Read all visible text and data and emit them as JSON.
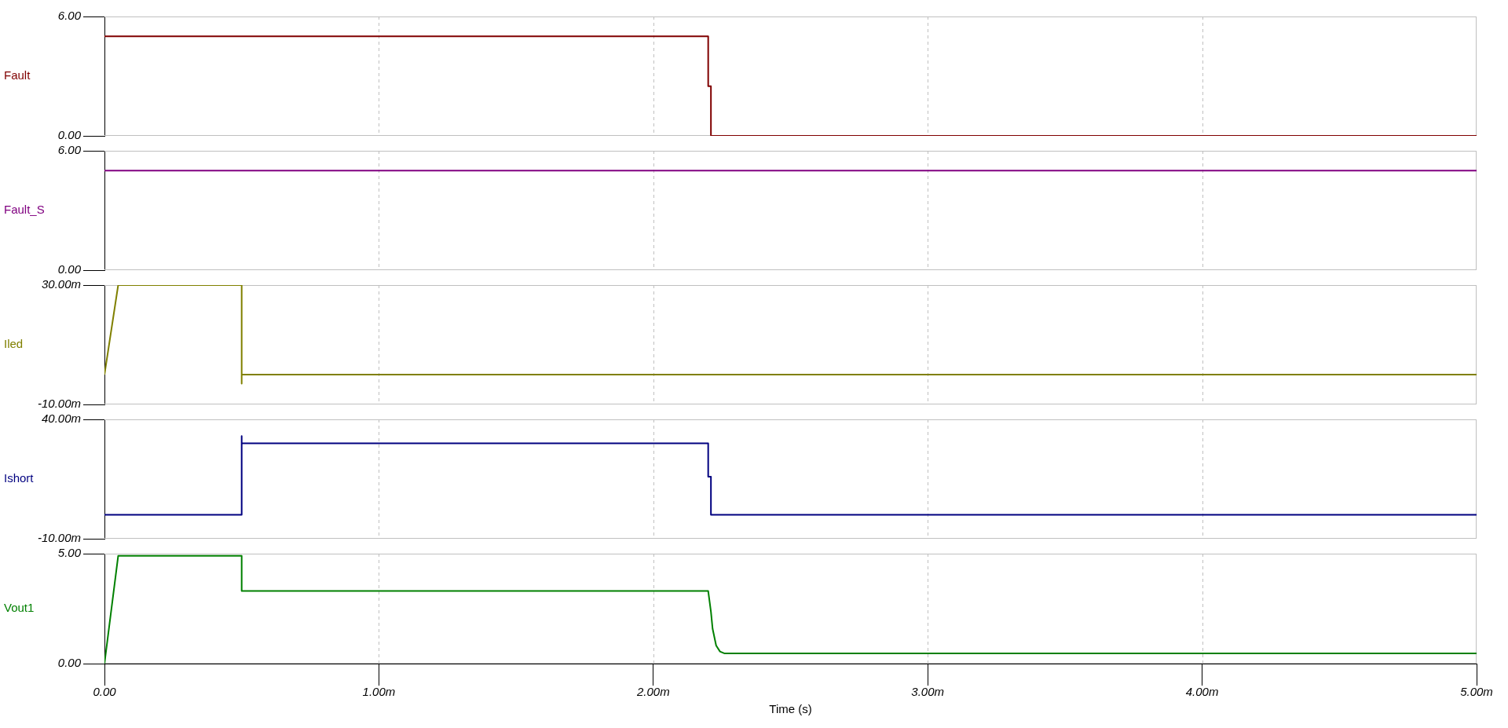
{
  "chart_data": [
    {
      "type": "line",
      "xlim": [
        0,
        5
      ],
      "xticks": [
        0,
        1,
        2,
        3,
        4,
        5
      ],
      "ylim": [
        0,
        6
      ],
      "yticks": [
        {
          "value": 0,
          "label": "0.00"
        },
        {
          "value": 6,
          "label": "6.00"
        }
      ],
      "grid": "x",
      "legend": false,
      "tick_labels": "y",
      "marker": "none",
      "series": [
        {
          "name": "Fault",
          "color": "#800000",
          "x": [
            0,
            2.2,
            2.2,
            2.21,
            2.21,
            5
          ],
          "values": [
            5,
            5,
            2.5,
            2.5,
            0,
            0
          ]
        }
      ]
    },
    {
      "type": "line",
      "xlim": [
        0,
        5
      ],
      "xticks": [
        0,
        1,
        2,
        3,
        4,
        5
      ],
      "ylim": [
        0,
        6
      ],
      "yticks": [
        {
          "value": 0,
          "label": "0.00"
        },
        {
          "value": 6,
          "label": "6.00"
        }
      ],
      "grid": "x",
      "legend": false,
      "tick_labels": "y",
      "marker": "none",
      "series": [
        {
          "name": "Fault_S",
          "color": "#800080",
          "x": [
            0,
            5
          ],
          "values": [
            5,
            5
          ]
        }
      ]
    },
    {
      "type": "line",
      "xlim": [
        0,
        5
      ],
      "xticks": [
        0,
        1,
        2,
        3,
        4,
        5
      ],
      "ylim": [
        -10,
        30
      ],
      "yticks": [
        {
          "value": -10,
          "label": "-10.00m"
        },
        {
          "value": 30,
          "label": "30.00m"
        }
      ],
      "grid": "x",
      "legend": false,
      "tick_labels": "y",
      "marker": "none",
      "series": [
        {
          "name": "Iled",
          "color": "#808000",
          "x": [
            0,
            0.05,
            0.5,
            0.5,
            0.5,
            5
          ],
          "values": [
            0,
            30,
            30,
            -3,
            0,
            0
          ]
        }
      ]
    },
    {
      "type": "line",
      "xlim": [
        0,
        5
      ],
      "xticks": [
        0,
        1,
        2,
        3,
        4,
        5
      ],
      "ylim": [
        -10,
        40
      ],
      "yticks": [
        {
          "value": -10,
          "label": "-10.00m"
        },
        {
          "value": 40,
          "label": "40.00m"
        }
      ],
      "grid": "x",
      "legend": false,
      "tick_labels": "y",
      "marker": "none",
      "series": [
        {
          "name": "Ishort",
          "color": "#000080",
          "x": [
            0,
            0.5,
            0.5,
            0.5,
            2.2,
            2.2,
            2.21,
            2.21,
            5
          ],
          "values": [
            0,
            0,
            33,
            30,
            30,
            16,
            16,
            0,
            0
          ]
        }
      ]
    },
    {
      "type": "line",
      "xlabel": "Time (s)",
      "xlim": [
        0,
        5
      ],
      "xticks": [
        {
          "value": 0,
          "label": "0.00"
        },
        {
          "value": 1,
          "label": "1.00m"
        },
        {
          "value": 2,
          "label": "2.00m"
        },
        {
          "value": 3,
          "label": "3.00m"
        },
        {
          "value": 4,
          "label": "4.00m"
        },
        {
          "value": 5,
          "label": "5.00m"
        }
      ],
      "ylim": [
        0,
        5
      ],
      "yticks": [
        {
          "value": 0,
          "label": "0.00"
        },
        {
          "value": 5,
          "label": "5.00"
        }
      ],
      "grid": "x",
      "legend": false,
      "marker": "none",
      "series": [
        {
          "name": "Vout1",
          "color": "#008000",
          "x": [
            0,
            0.05,
            0.5,
            0.5,
            2.2,
            2.21,
            2.216,
            2.229,
            2.243,
            2.26,
            5
          ],
          "values": [
            0,
            4.9,
            4.9,
            3.3,
            3.3,
            2.36,
            1.59,
            0.82,
            0.55,
            0.46,
            0.46
          ]
        }
      ]
    }
  ]
}
